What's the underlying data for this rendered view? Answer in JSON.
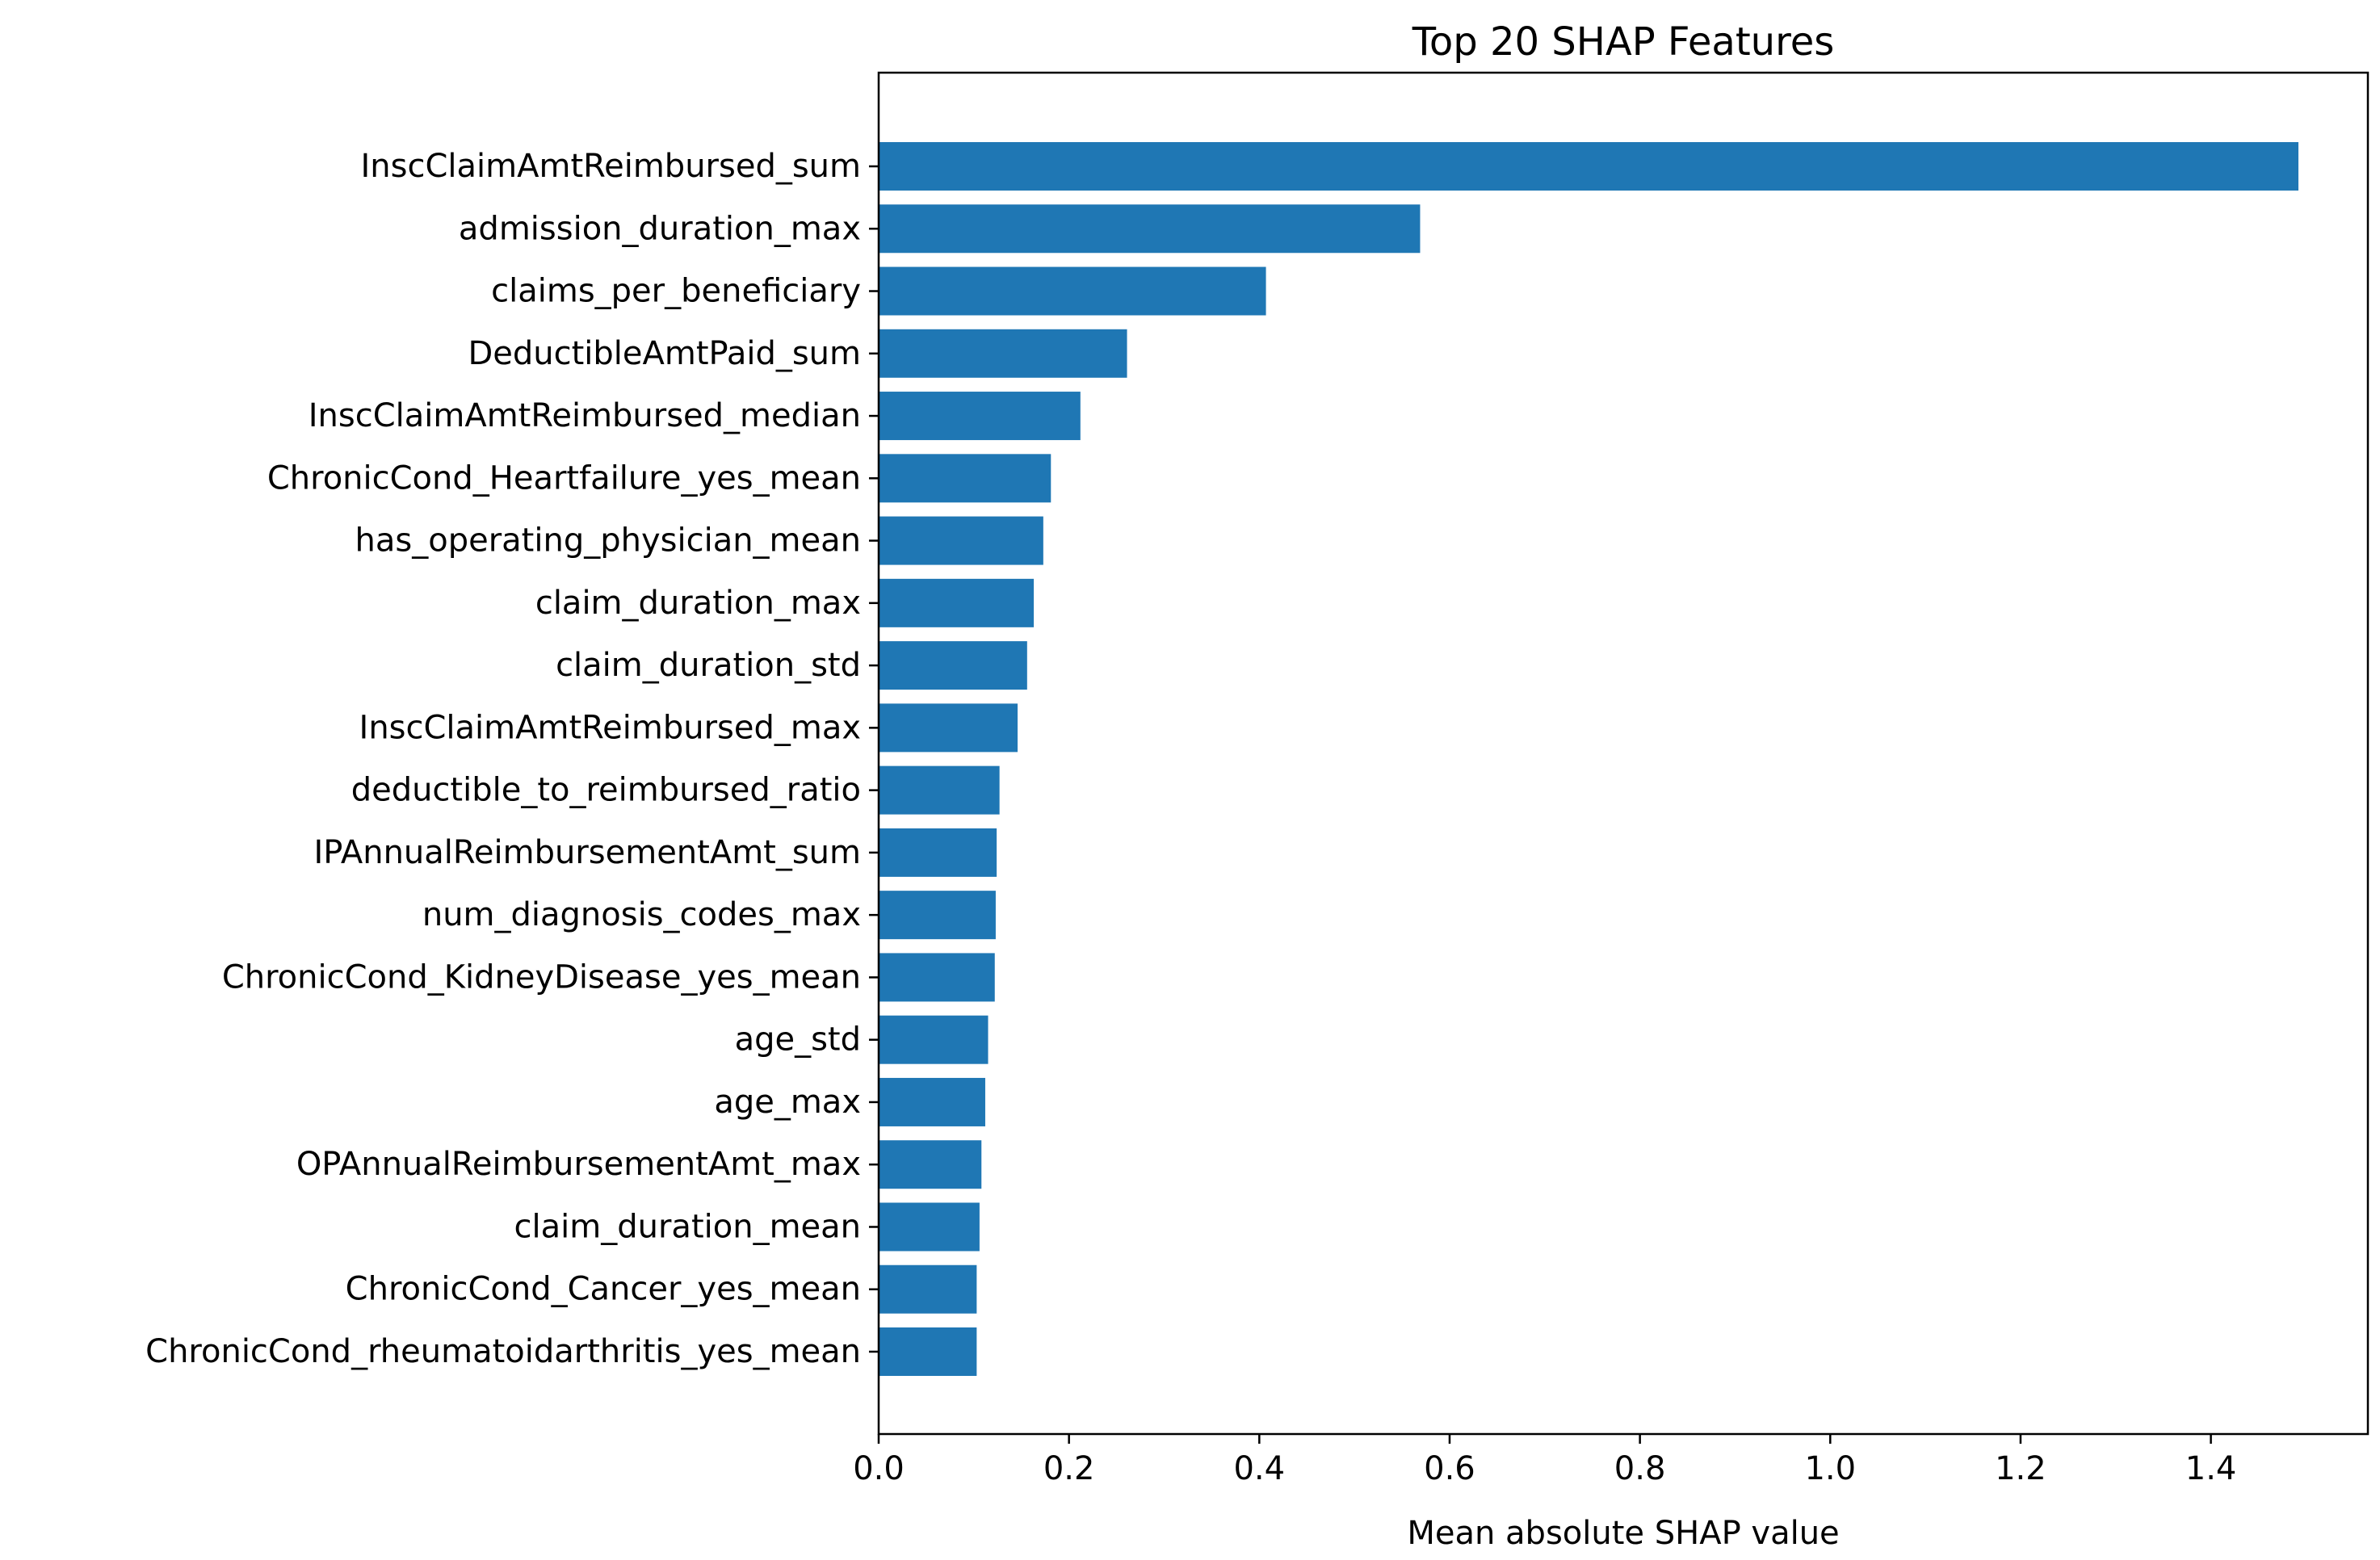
{
  "chart_data": {
    "type": "bar",
    "orientation": "horizontal",
    "title": "Top 20 SHAP Features",
    "xlabel": "Mean absolute SHAP value",
    "ylabel": "",
    "xlim": [
      0,
      1.565
    ],
    "xticks": [
      0.0,
      0.2,
      0.4,
      0.6,
      0.8,
      1.0,
      1.2,
      1.4
    ],
    "xtick_labels": [
      "0.0",
      "0.2",
      "0.4",
      "0.6",
      "0.8",
      "1.0",
      "1.2",
      "1.4"
    ],
    "grid": false,
    "bar_color": "#1f77b4",
    "categories": [
      "InscClaimAmtReimbursed_sum",
      "admission_duration_max",
      "claims_per_beneficiary",
      "DeductibleAmtPaid_sum",
      "InscClaimAmtReimbursed_median",
      "ChronicCond_Heartfailure_yes_mean",
      "has_operating_physician_mean",
      "claim_duration_max",
      "claim_duration_std",
      "InscClaimAmtReimbursed_max",
      "deductible_to_reimbursed_ratio",
      "IPAnnualReimbursementAmt_sum",
      "num_diagnosis_codes_max",
      "ChronicCond_KidneyDisease_yes_mean",
      "age_std",
      "age_max",
      "OPAnnualReimbursementAmt_max",
      "claim_duration_mean",
      "ChronicCond_Cancer_yes_mean",
      "ChronicCond_rheumatoidarthritis_yes_mean"
    ],
    "values": [
      1.492,
      0.569,
      0.407,
      0.261,
      0.212,
      0.181,
      0.173,
      0.163,
      0.156,
      0.146,
      0.127,
      0.124,
      0.123,
      0.122,
      0.115,
      0.112,
      0.108,
      0.106,
      0.103,
      0.103
    ]
  }
}
